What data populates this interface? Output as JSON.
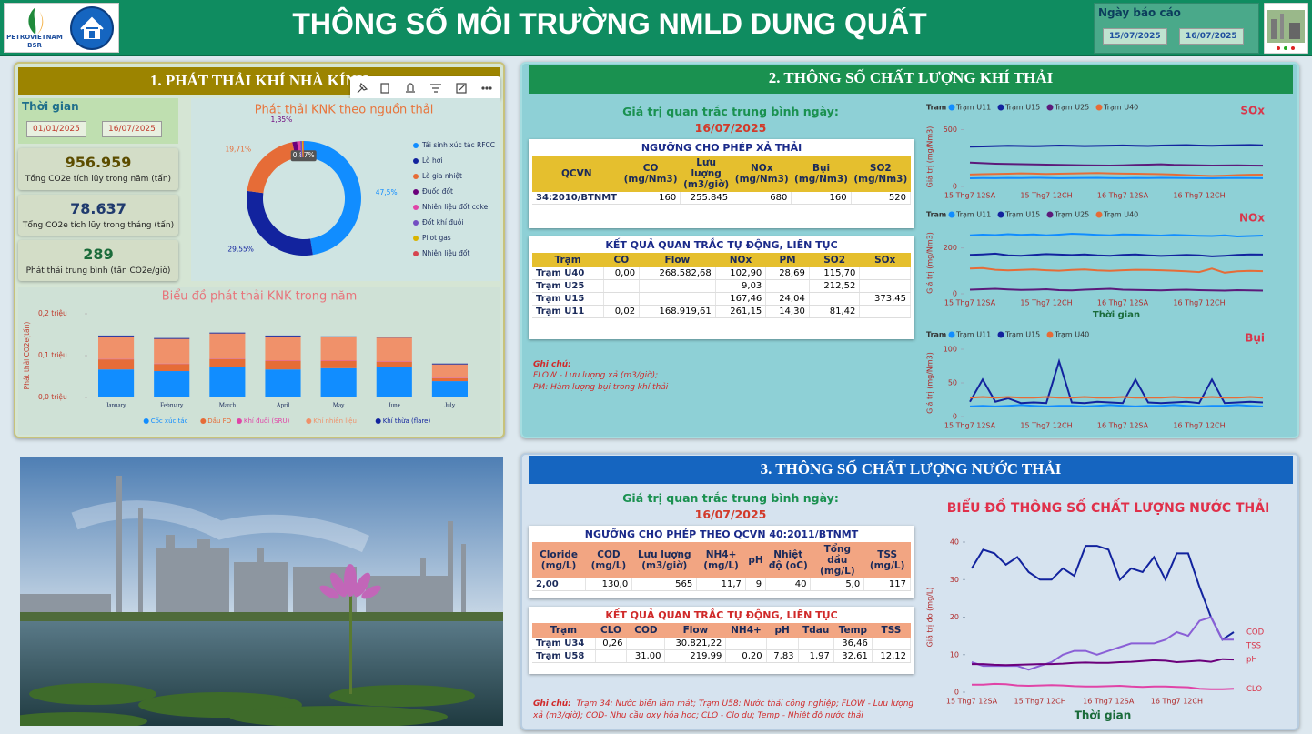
{
  "header": {
    "logo_text": "PETROVIETNAM",
    "logo_sub": "BSR",
    "title": "THÔNG SỐ MÔI TRƯỜNG NMLD DUNG QUẤT",
    "date_label": "Ngày báo cáo",
    "date_from": "15/07/2025",
    "date_to": "16/07/2025"
  },
  "ghg": {
    "title": "1. PHÁT THẢI KHÍ NHÀ KÍNH",
    "time_label": "Thời gian",
    "date_from": "01/01/2025",
    "date_to": "16/07/2025",
    "kpis": [
      {
        "value": "956.959",
        "label": "Tổng CO2e tích lũy trong năm (tấn)"
      },
      {
        "value": "78.637",
        "label": "Tổng CO2e tích lũy trong tháng (tấn)"
      },
      {
        "value": "289",
        "label": "Phát thải trung bình (tấn CO2e/giờ)"
      }
    ]
  },
  "air": {
    "title": "2. THÔNG SỐ CHẤT LƯỢNG KHÍ THẢI",
    "avg_label": "Giá trị quan trắc trung bình ngày:",
    "avg_date": "16/07/2025",
    "limits": {
      "title": "NGƯỠNG CHO PHÉP XẢ THẢI",
      "columns": [
        "QCVN",
        "CO (mg/Nm3)",
        "Lưu lượng (m3/giờ)",
        "NOx (mg/Nm3)",
        "Bụi (mg/Nm3)",
        "SO2 (mg/Nm3)"
      ],
      "rows": [
        [
          "34:2010/BTNMT",
          "160",
          "255.845",
          "680",
          "160",
          "520"
        ]
      ]
    },
    "results": {
      "title": "KẾT QUẢ QUAN TRẮC TỰ ĐỘNG, LIÊN TỤC",
      "columns": [
        "Trạm",
        "CO",
        "Flow",
        "NOx",
        "PM",
        "SO2",
        "SOx"
      ],
      "rows": [
        [
          "Trạm U40",
          "0,00",
          "268.582,68",
          "102,90",
          "28,69",
          "115,70",
          null
        ],
        [
          "Trạm U25",
          null,
          null,
          "9,03",
          null,
          "212,52",
          null
        ],
        [
          "Trạm U15",
          null,
          null,
          "167,46",
          "24,04",
          null,
          "373,45"
        ],
        [
          "Trạm U11",
          "0,02",
          "168.919,61",
          "261,15",
          "14,30",
          "81,42",
          null
        ]
      ]
    },
    "note_title": "Ghi chú:",
    "notes": [
      "FLOW - Lưu lượng xả (m3/giờ);",
      "PM: Hàm lượng bụi trong khí thải"
    ]
  },
  "water": {
    "title": "3. THÔNG SỐ CHẤT LƯỢNG NƯỚC THẢI",
    "avg_label": "Giá trị quan trắc trung bình ngày:",
    "avg_date": "16/07/2025",
    "limits": {
      "title": "NGƯỠNG CHO PHÉP THEO QCVN 40:2011/BTNMT",
      "columns": [
        "Cloride (mg/L)",
        "COD (mg/L)",
        "Lưu lượng (m3/giờ)",
        "NH4+ (mg/L)",
        "pH",
        "Nhiệt độ (oC)",
        "Tổng dầu (mg/L)",
        "TSS (mg/L)"
      ],
      "rows": [
        [
          "2,00",
          "130,0",
          "565",
          "11,7",
          "9",
          "40",
          "5,0",
          "117"
        ]
      ]
    },
    "results": {
      "title": "KẾT QUẢ QUAN TRẮC TỰ ĐỘNG, LIÊN TỤC",
      "columns": [
        "Trạm",
        "CLO",
        "COD",
        "Flow",
        "NH4+",
        "pH",
        "Tdau",
        "Temp",
        "TSS"
      ],
      "rows": [
        [
          "Trạm U34",
          "0,26",
          null,
          "30.821,22",
          null,
          null,
          null,
          "36,46",
          null
        ],
        [
          "Trạm U58",
          null,
          "31,00",
          "219,99",
          "0,20",
          "7,83",
          "1,97",
          "32,61",
          "12,12"
        ]
      ]
    },
    "note_title": "Ghi chú:",
    "note": "Trạm 34: Nước biển làm mát; Trạm U58: Nước thải công nghiệp; FLOW - Lưu lượng xả (m3/giờ);  COD- Nhu cầu oxy hóa học; CLO - Clo dư; Temp - Nhiệt độ nước thải"
  },
  "chart_data": [
    {
      "type": "pie",
      "title": "Phát thải KNK theo nguồn thải",
      "categories": [
        "Tái sinh xúc tác RFCC",
        "Lò hơi",
        "Lò gia nhiệt",
        "Đuốc đốt",
        "Nhiên liệu đốt coke",
        "Đốt khí đuôi",
        "Pilot gas",
        "Nhiên liệu đốt"
      ],
      "values": [
        47.5,
        29.55,
        19.71,
        1.35,
        0.87,
        0.5,
        0.3,
        0.22
      ],
      "value_labels": [
        "47,5%",
        "29,55%",
        "19,71%",
        "1,35%",
        "0,87%",
        null,
        null,
        null
      ],
      "colors": [
        "#118dff",
        "#12239e",
        "#e66c37",
        "#6b007b",
        "#e044a7",
        "#744ec2",
        "#d9b300",
        "#d64550"
      ]
    },
    {
      "type": "stacked-bar",
      "title": "Biểu đồ phát thải KNK trong năm",
      "y_label": "Phát thải CO2e(tấn)",
      "categories": [
        "January",
        "February",
        "March",
        "April",
        "May",
        "June",
        "July"
      ],
      "ylim": [
        0,
        0.2
      ],
      "yticks": [
        {
          "value": 0,
          "label": "0,0 triệu"
        },
        {
          "value": 0.1,
          "label": "0,1 triệu"
        },
        {
          "value": 0.2,
          "label": "0,2 triệu"
        }
      ],
      "series": [
        {
          "name": "Cốc xúc tác",
          "color": "#118dff",
          "values": [
            0.067,
            0.063,
            0.072,
            0.067,
            0.07,
            0.072,
            0.039
          ]
        },
        {
          "name": "Dầu FO",
          "color": "#e66c37",
          "values": [
            0.024,
            0.017,
            0.02,
            0.02,
            0.017,
            0.013,
            0.007
          ]
        },
        {
          "name": "Khí đuôi (SRU)",
          "color": "#e044a7",
          "values": [
            0.001,
            0.001,
            0.001,
            0.001,
            0.001,
            0.001,
            0.001
          ]
        },
        {
          "name": "Khí nhiên liệu",
          "color": "#f0916a",
          "values": [
            0.054,
            0.059,
            0.06,
            0.058,
            0.056,
            0.057,
            0.032
          ]
        },
        {
          "name": "Khí thừa (flare)",
          "color": "#12239e",
          "values": [
            0.002,
            0.002,
            0.002,
            0.002,
            0.002,
            0.002,
            0.002
          ]
        }
      ]
    },
    {
      "type": "line",
      "title": "SOx",
      "legend": "top",
      "legend_title": "Tram",
      "y_label": "Giá trị (mg/Nm3)",
      "categories": [
        "15 Thg7 12SA",
        null,
        null,
        null,
        null,
        null,
        "15 Thg7 12CH",
        null,
        null,
        null,
        null,
        null,
        "16 Thg7 12SA",
        null,
        null,
        null,
        null,
        null,
        "16 Thg7 12CH",
        null,
        null,
        null,
        null,
        null
      ],
      "ylim": [
        0,
        520
      ],
      "yticks": [
        0,
        500
      ],
      "series": [
        {
          "name": "Trạm U11",
          "color": "#118dff",
          "values": [
            72,
            74,
            73,
            75,
            74,
            76,
            75,
            73,
            74,
            75,
            76,
            74,
            73,
            75,
            74,
            76,
            75,
            74,
            73,
            72,
            74,
            75,
            74,
            73
          ]
        },
        {
          "name": "Trạm U15",
          "color": "#12239e",
          "values": [
            350,
            352,
            355,
            358,
            356,
            354,
            357,
            360,
            358,
            355,
            357,
            359,
            361,
            358,
            356,
            360,
            362,
            364,
            360,
            358,
            361,
            363,
            365,
            362
          ]
        },
        {
          "name": "Trạm U25",
          "color": "#5c1a7a",
          "values": [
            210,
            205,
            200,
            198,
            196,
            194,
            192,
            190,
            188,
            186,
            185,
            184,
            186,
            190,
            192,
            195,
            190,
            188,
            186,
            184,
            185,
            186,
            184,
            183
          ]
        },
        {
          "name": "Trạm U40",
          "color": "#e66c37",
          "values": [
            105,
            108,
            110,
            112,
            115,
            113,
            110,
            112,
            114,
            116,
            118,
            115,
            113,
            112,
            110,
            108,
            105,
            100,
            96,
            92,
            95,
            100,
            103,
            104
          ]
        }
      ]
    },
    {
      "type": "line",
      "title": "NOx",
      "legend": "top",
      "legend_title": "Tram",
      "y_label": "Giá trị (mg/Nm3)",
      "x_label": "Thời gian",
      "categories": [
        "15 Thg7 12SA",
        null,
        null,
        null,
        null,
        null,
        "15 Thg7 12CH",
        null,
        null,
        null,
        null,
        null,
        "16 Thg7 12SA",
        null,
        null,
        null,
        null,
        null,
        "16 Thg7 12CH",
        null,
        null,
        null,
        null,
        null
      ],
      "ylim": [
        0,
        270
      ],
      "yticks": [
        0,
        200
      ],
      "series": [
        {
          "name": "Trạm U11",
          "color": "#118dff",
          "values": [
            255,
            258,
            256,
            260,
            257,
            259,
            255,
            258,
            262,
            260,
            257,
            255,
            259,
            258,
            256,
            254,
            257,
            255,
            253,
            252,
            255,
            250,
            252,
            254
          ]
        },
        {
          "name": "Trạm U15",
          "color": "#12239e",
          "values": [
            170,
            172,
            175,
            168,
            166,
            170,
            173,
            171,
            169,
            172,
            168,
            166,
            170,
            172,
            168,
            165,
            167,
            170,
            168,
            163,
            166,
            170,
            172,
            171
          ]
        },
        {
          "name": "Trạm U25",
          "color": "#5c1a7a",
          "values": [
            18,
            20,
            22,
            19,
            17,
            18,
            20,
            16,
            15,
            18,
            20,
            22,
            18,
            17,
            16,
            15,
            17,
            18,
            16,
            15,
            14,
            16,
            15,
            14
          ]
        },
        {
          "name": "Trạm U40",
          "color": "#e66c37",
          "values": [
            110,
            112,
            105,
            102,
            104,
            106,
            103,
            101,
            104,
            106,
            102,
            100,
            103,
            105,
            104,
            103,
            101,
            98,
            95,
            110,
            92,
            98,
            100,
            99
          ]
        }
      ]
    },
    {
      "type": "line",
      "title": "Bụi",
      "legend": "top",
      "legend_title": "Tram",
      "y_label": "Giá trị (mg/Nm3)",
      "categories": [
        "15 Thg7 12SA",
        null,
        null,
        null,
        null,
        null,
        "15 Thg7 12CH",
        null,
        null,
        null,
        null,
        null,
        "16 Thg7 12SA",
        null,
        null,
        null,
        null,
        null,
        "16 Thg7 12CH",
        null,
        null,
        null,
        null,
        null
      ],
      "ylim": [
        0,
        100
      ],
      "yticks": [
        0,
        50,
        100
      ],
      "series": [
        {
          "name": "Trạm U11",
          "color": "#118dff",
          "values": [
            15,
            16,
            15,
            16,
            17,
            16,
            15,
            16,
            16,
            15,
            16,
            17,
            16,
            15,
            16,
            16,
            17,
            16,
            15,
            16,
            16,
            17,
            16,
            15
          ]
        },
        {
          "name": "Trạm U15",
          "color": "#12239e",
          "values": [
            22,
            55,
            22,
            27,
            20,
            21,
            20,
            82,
            21,
            20,
            22,
            21,
            20,
            55,
            21,
            20,
            21,
            22,
            20,
            55,
            20,
            21,
            22,
            21
          ]
        },
        {
          "name": "Trạm U40",
          "color": "#e66c37",
          "values": [
            28,
            29,
            28,
            29,
            28,
            28,
            29,
            28,
            28,
            29,
            28,
            28,
            29,
            28,
            28,
            28,
            29,
            28,
            28,
            29,
            28,
            28,
            29,
            28
          ]
        }
      ]
    },
    {
      "type": "line",
      "title": "BIỂU ĐỒ THÔNG SỐ CHẤT LƯỢNG NƯỚC THẢI",
      "legend": "line-end",
      "y_label": "Giá trị đo (mg/L)",
      "x_label": "Thời gian",
      "categories": [
        "15 Thg7 12SA",
        null,
        null,
        null,
        null,
        null,
        "15 Thg7 12CH",
        null,
        null,
        null,
        null,
        null,
        "16 Thg7 12SA",
        null,
        null,
        null,
        null,
        null,
        "16 Thg7 12CH",
        null,
        null,
        null,
        null,
        null
      ],
      "ylim": [
        0,
        40
      ],
      "yticks": [
        0,
        10,
        20,
        30,
        40
      ],
      "series": [
        {
          "name": "COD",
          "color": "#12239e",
          "values": [
            33,
            38,
            37,
            34,
            36,
            32,
            30,
            30,
            33,
            31,
            39,
            39,
            38,
            30,
            33,
            32,
            36,
            30,
            37,
            37,
            28,
            20,
            14,
            16
          ]
        },
        {
          "name": "TSS",
          "color": "#8a5fd6",
          "values": [
            8,
            7,
            7,
            7,
            7,
            6,
            7,
            8,
            10,
            11,
            11,
            10,
            11,
            12,
            13,
            13,
            13,
            14,
            16,
            15,
            19,
            20,
            14,
            14
          ]
        },
        {
          "name": "pH",
          "color": "#6b007b",
          "values": [
            7.5,
            7.5,
            7.3,
            7.2,
            7.3,
            7.4,
            7.5,
            7.5,
            7.6,
            7.8,
            7.9,
            7.8,
            7.8,
            8,
            8.1,
            8.3,
            8.5,
            8.4,
            8,
            8.2,
            8.4,
            8.1,
            8.8,
            8.7
          ]
        },
        {
          "name": "CLO",
          "color": "#e044a7",
          "values": [
            2,
            2,
            2.2,
            2.1,
            1.8,
            1.7,
            1.8,
            1.9,
            1.8,
            1.6,
            1.5,
            1.5,
            1.6,
            1.7,
            1.5,
            1.4,
            1.5,
            1.5,
            1.4,
            1.3,
            0.9,
            0.8,
            0.8,
            0.9
          ]
        }
      ]
    }
  ]
}
